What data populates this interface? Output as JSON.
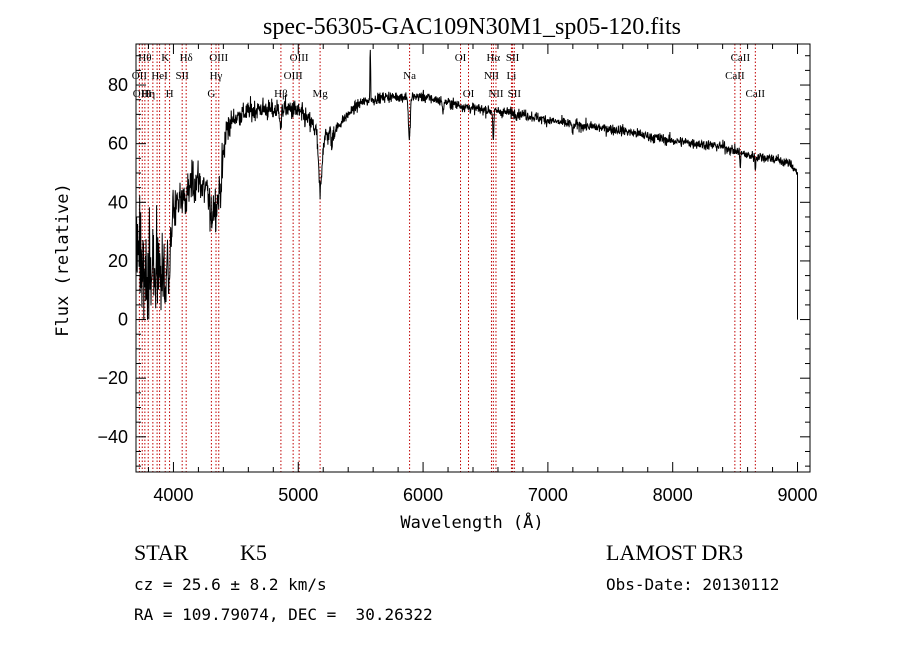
{
  "chart_data": {
    "type": "line",
    "title": "spec-56305-GAC109N30M1_sp05-120.fits",
    "xlabel": "Wavelength (Å)",
    "ylabel": "Flux (relative)",
    "xlim": [
      3700,
      9100
    ],
    "ylim": [
      -52,
      94
    ],
    "xticks": [
      4000,
      5000,
      6000,
      7000,
      8000,
      9000
    ],
    "xtick_labels": [
      "4000",
      "5000",
      "6000",
      "7000",
      "8000",
      "9000"
    ],
    "yticks": [
      -40,
      -20,
      0,
      20,
      40,
      60,
      80
    ],
    "ytick_labels": [
      "−40",
      "−20",
      "0",
      "20",
      "40",
      "60",
      "80"
    ],
    "continuum": [
      [
        3700,
        25
      ],
      [
        3750,
        18
      ],
      [
        3800,
        16
      ],
      [
        3850,
        17
      ],
      [
        3900,
        15
      ],
      [
        3950,
        20
      ],
      [
        4000,
        37
      ],
      [
        4050,
        41
      ],
      [
        4100,
        45
      ],
      [
        4150,
        46
      ],
      [
        4200,
        48
      ],
      [
        4250,
        44
      ],
      [
        4300,
        41
      ],
      [
        4340,
        38
      ],
      [
        4380,
        46
      ],
      [
        4420,
        64
      ],
      [
        4450,
        67
      ],
      [
        4500,
        69
      ],
      [
        4600,
        71
      ],
      [
        4700,
        72
      ],
      [
        4800,
        71
      ],
      [
        4850,
        72
      ],
      [
        4900,
        72
      ],
      [
        5000,
        71
      ],
      [
        5100,
        67
      ],
      [
        5200,
        62
      ],
      [
        5300,
        65
      ],
      [
        5400,
        70
      ],
      [
        5500,
        74
      ],
      [
        5600,
        75
      ],
      [
        5700,
        76
      ],
      [
        5800,
        76
      ],
      [
        5900,
        76
      ],
      [
        6000,
        76
      ],
      [
        6200,
        74
      ],
      [
        6400,
        72
      ],
      [
        6600,
        71
      ],
      [
        6800,
        70
      ],
      [
        7000,
        68
      ],
      [
        7200,
        66.5
      ],
      [
        7400,
        65.5
      ],
      [
        7600,
        64.5
      ],
      [
        7800,
        62.5
      ],
      [
        8000,
        61
      ],
      [
        8200,
        60
      ],
      [
        8400,
        59
      ],
      [
        8600,
        56
      ],
      [
        8800,
        55
      ],
      [
        8950,
        53
      ],
      [
        9000,
        50
      ]
    ],
    "absorption_features": [
      [
        3934,
        12,
        10
      ],
      [
        3969,
        12,
        10
      ],
      [
        4102,
        10,
        8
      ],
      [
        4300,
        12,
        8
      ],
      [
        4861,
        8,
        7
      ],
      [
        5175,
        18,
        20
      ],
      [
        5270,
        6,
        6
      ],
      [
        5890,
        10,
        15
      ],
      [
        6160,
        5,
        5
      ],
      [
        6563,
        6,
        10
      ],
      [
        7200,
        5,
        4
      ],
      [
        8542,
        4,
        5
      ],
      [
        8662,
        4,
        5
      ]
    ],
    "emission_features": [
      [
        5577,
        25,
        3
      ]
    ],
    "red_end_drop": [
      [
        9000,
        50
      ],
      [
        9000,
        20
      ],
      [
        9000,
        0
      ]
    ],
    "line_markers": [
      {
        "wave": 3727,
        "label": "OII",
        "row": 2
      },
      {
        "wave": 3750,
        "label": "OIII",
        "row": 3
      },
      {
        "wave": 3771,
        "label": "Hθ",
        "row": 1
      },
      {
        "wave": 3798,
        "label": "Hη",
        "row": 3
      },
      {
        "wave": 3835,
        "label": "",
        "row": 0
      },
      {
        "wave": 3869,
        "label": "",
        "row": 0
      },
      {
        "wave": 3889,
        "label": "HeI",
        "row": 2
      },
      {
        "wave": 3934,
        "label": "K",
        "row": 1
      },
      {
        "wave": 3969,
        "label": "H",
        "row": 3
      },
      {
        "wave": 4070,
        "label": "SII",
        "row": 2
      },
      {
        "wave": 4102,
        "label": "Hδ",
        "row": 1
      },
      {
        "wave": 4304,
        "label": "G",
        "row": 3
      },
      {
        "wave": 4341,
        "label": "Hγ",
        "row": 2
      },
      {
        "wave": 4363,
        "label": "OIII",
        "row": 1
      },
      {
        "wave": 4861,
        "label": "Hβ",
        "row": 3
      },
      {
        "wave": 4959,
        "label": "OIII",
        "row": 2
      },
      {
        "wave": 5007,
        "label": "OIII",
        "row": 1
      },
      {
        "wave": 5175,
        "label": "Mg",
        "row": 3
      },
      {
        "wave": 5892,
        "label": "Na",
        "row": 2
      },
      {
        "wave": 6300,
        "label": "OI",
        "row": 1
      },
      {
        "wave": 6364,
        "label": "OI",
        "row": 3
      },
      {
        "wave": 6548,
        "label": "NII",
        "row": 2
      },
      {
        "wave": 6563,
        "label": "Hα",
        "row": 1
      },
      {
        "wave": 6584,
        "label": "NII",
        "row": 3
      },
      {
        "wave": 6708,
        "label": "Li",
        "row": 2
      },
      {
        "wave": 6717,
        "label": "SII",
        "row": 1
      },
      {
        "wave": 6731,
        "label": "SII",
        "row": 3
      },
      {
        "wave": 8498,
        "label": "CaII",
        "row": 2
      },
      {
        "wave": 8542,
        "label": "CaII",
        "row": 1
      },
      {
        "wave": 8662,
        "label": "CaII",
        "row": 3
      }
    ]
  },
  "info": {
    "class": "STAR",
    "subclass": "K5",
    "survey": "LAMOST DR3",
    "cz": "cz = 25.6 ± 8.2 km/s",
    "obs_date": "Obs-Date: 20130112",
    "coords": "RA = 109.79074, DEC =  30.26322"
  }
}
